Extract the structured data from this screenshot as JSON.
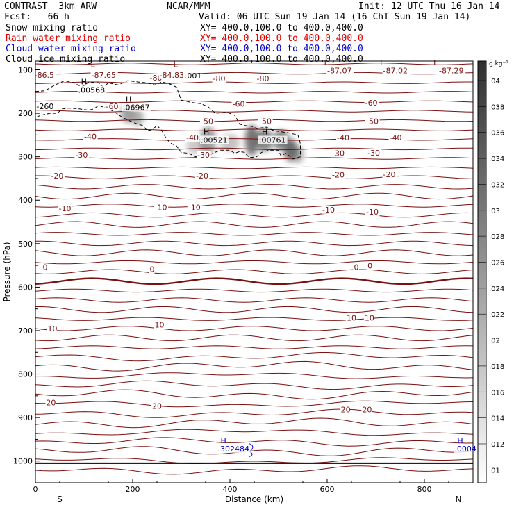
{
  "header": {
    "model": "CONTRAST  3km ARW",
    "org": "NCAR/MMM",
    "init": "Init: 12 UTC Thu 16 Jan 14",
    "fcst": "Fcst:   66 h",
    "valid": "Valid: 06 UTC Sun 19 Jan 14 (16 ChT Sun 19 Jan 14)"
  },
  "fields": [
    {
      "label": "Snow mixing ratio",
      "xy": "XY= 400.0,100.0 to 400.0,400.0",
      "color": "#000000"
    },
    {
      "label": "Rain water mixing ratio",
      "xy": "XY= 400.0,100.0 to 400.0,400.0",
      "color": "#e00000"
    },
    {
      "label": "Cloud water mixing ratio",
      "xy": "XY= 400.0,100.0 to 400.0,400.0",
      "color": "#0000cc"
    },
    {
      "label": "Cloud ice mixing ratio",
      "xy": "XY= 400.0,100.0 to 400.0,400.0",
      "color": "#000000"
    }
  ],
  "chart_data": {
    "type": "cross-section",
    "xlabel": "Distance (km)",
    "ylabel": "Pressure (hPa)",
    "xlim": [
      0,
      900
    ],
    "ylim": [
      1050,
      80
    ],
    "xticks": [
      "0",
      "200",
      "400",
      "600",
      "800"
    ],
    "xtick_values": [
      0,
      200,
      400,
      600,
      800
    ],
    "yticks": [
      "100",
      "200",
      "300",
      "400",
      "500",
      "600",
      "700",
      "800",
      "900",
      "1000"
    ],
    "ytick_values": [
      100,
      200,
      300,
      400,
      500,
      600,
      700,
      800,
      900,
      1000
    ],
    "direction_left": "S",
    "direction_right": "N",
    "surface_pressure": 1005,
    "colorbar": {
      "unit": "g kg⁻¹",
      "ticks": [
        ".01",
        ".012",
        ".014",
        ".016",
        ".018",
        ".02",
        ".022",
        ".024",
        ".026",
        ".028",
        ".03",
        ".032",
        ".034",
        ".036",
        ".038",
        ".04"
      ],
      "tick_values": [
        0.01,
        0.012,
        0.014,
        0.016,
        0.018,
        0.02,
        0.022,
        0.024,
        0.026,
        0.028,
        0.03,
        0.032,
        0.034,
        0.036,
        0.038,
        0.04
      ]
    },
    "temperature_labels": [
      {
        "text": "-86.5",
        "x": -2,
        "p": 118,
        "color": "#7a1010"
      },
      {
        "text": "-87.65",
        "x": 115,
        "p": 118,
        "color": "#7a1010"
      },
      {
        "text": "-80",
        "x": 235,
        "p": 125,
        "color": "#7a1010"
      },
      {
        "text": "-84.83",
        "x": 255,
        "p": 118,
        "color": "#7a1010"
      },
      {
        "text": "-80",
        "x": 365,
        "p": 126,
        "color": "#7a1010"
      },
      {
        "text": "-80",
        "x": 455,
        "p": 126,
        "color": "#7a1010"
      },
      {
        "text": "-87.07",
        "x": 600,
        "p": 108,
        "color": "#7a1010"
      },
      {
        "text": "-87.02",
        "x": 715,
        "p": 108,
        "color": "#7a1010"
      },
      {
        "text": "-87.29",
        "x": 830,
        "p": 108,
        "color": "#7a1010"
      },
      {
        "text": "-60",
        "x": 145,
        "p": 190,
        "color": "#7a1010"
      },
      {
        "text": "-60",
        "x": 405,
        "p": 185,
        "color": "#7a1010"
      },
      {
        "text": "-60",
        "x": 678,
        "p": 182,
        "color": "#7a1010"
      },
      {
        "text": "-50",
        "x": 340,
        "p": 225,
        "color": "#7a1010"
      },
      {
        "text": "-50",
        "x": 460,
        "p": 225,
        "color": "#7a1010"
      },
      {
        "text": "-50",
        "x": 680,
        "p": 225,
        "color": "#7a1010"
      },
      {
        "text": "-40",
        "x": 100,
        "p": 260,
        "color": "#7a1010"
      },
      {
        "text": "-40",
        "x": 310,
        "p": 262,
        "color": "#7a1010"
      },
      {
        "text": "-40",
        "x": 620,
        "p": 262,
        "color": "#7a1010"
      },
      {
        "text": "-40",
        "x": 728,
        "p": 262,
        "color": "#7a1010"
      },
      {
        "text": "-30",
        "x": 82,
        "p": 302,
        "color": "#7a1010"
      },
      {
        "text": "-30",
        "x": 333,
        "p": 302,
        "color": "#7a1010"
      },
      {
        "text": "-30",
        "x": 610,
        "p": 298,
        "color": "#7a1010"
      },
      {
        "text": "-30",
        "x": 683,
        "p": 297,
        "color": "#7a1010"
      },
      {
        "text": "-20",
        "x": 32,
        "p": 350,
        "color": "#7a1010"
      },
      {
        "text": "-20",
        "x": 330,
        "p": 350,
        "color": "#7a1010"
      },
      {
        "text": "-20",
        "x": 610,
        "p": 348,
        "color": "#7a1010"
      },
      {
        "text": "-20",
        "x": 715,
        "p": 347,
        "color": "#7a1010"
      },
      {
        "text": "-10",
        "x": 48,
        "p": 425,
        "color": "#7a1010"
      },
      {
        "text": "-10",
        "x": 245,
        "p": 423,
        "color": "#7a1010"
      },
      {
        "text": "-10",
        "x": 314,
        "p": 423,
        "color": "#7a1010"
      },
      {
        "text": "-10",
        "x": 590,
        "p": 428,
        "color": "#7a1010"
      },
      {
        "text": "-10",
        "x": 680,
        "p": 433,
        "color": "#7a1010"
      },
      {
        "text": "0",
        "x": 15,
        "p": 560,
        "color": "#7a1010"
      },
      {
        "text": "0",
        "x": 235,
        "p": 565,
        "color": "#7a1010"
      },
      {
        "text": "0",
        "x": 655,
        "p": 560,
        "color": "#7a1010"
      },
      {
        "text": "0",
        "x": 683,
        "p": 557,
        "color": "#7a1010"
      },
      {
        "text": "10",
        "x": 25,
        "p": 702,
        "color": "#7a1010"
      },
      {
        "text": "10",
        "x": 245,
        "p": 693,
        "color": "#7a1010"
      },
      {
        "text": "10",
        "x": 640,
        "p": 677,
        "color": "#7a1010"
      },
      {
        "text": "10",
        "x": 677,
        "p": 677,
        "color": "#7a1010"
      },
      {
        "text": "20",
        "x": 22,
        "p": 872,
        "color": "#7a1010"
      },
      {
        "text": "20",
        "x": 240,
        "p": 880,
        "color": "#7a1010"
      },
      {
        "text": "20",
        "x": 628,
        "p": 888,
        "color": "#7a1010"
      },
      {
        "text": "20",
        "x": 672,
        "p": 888,
        "color": "#7a1010"
      }
    ],
    "extrema_labels": [
      {
        "marker": "L",
        "value": "",
        "x": 108,
        "p": 100,
        "color": "#7a1010"
      },
      {
        "marker": "L",
        "value": "",
        "x": 278,
        "p": 100,
        "color": "#7a1010"
      },
      {
        "marker": "L",
        "value": "",
        "x": 588,
        "p": 96,
        "color": "#7a1010"
      },
      {
        "marker": "L",
        "value": "",
        "x": 703,
        "p": 96,
        "color": "#7a1010"
      },
      {
        "marker": "L",
        "value": "",
        "x": 813,
        "p": 96,
        "color": "#7a1010"
      },
      {
        "marker": "H",
        "value": ".00568",
        "x": 88,
        "p": 140,
        "color": "#000000"
      },
      {
        "marker": "H",
        "value": ".06967",
        "x": 180,
        "p": 180,
        "color": "#000000"
      },
      {
        "marker": "H",
        "value": ".00521",
        "x": 340,
        "p": 255,
        "color": "#000000"
      },
      {
        "marker": "H",
        "value": ".00761",
        "x": 460,
        "p": 255,
        "color": "#000000"
      },
      {
        "marker": "H",
        "value": ".302484",
        "x": 375,
        "p": 965,
        "color": "#0000cc"
      },
      {
        "marker": "H",
        "value": ".0004",
        "x": 862,
        "p": 965,
        "color": "#0000cc"
      }
    ],
    "misc_labels": [
      {
        "text": "-260",
        "x": 2,
        "p": 190,
        "color": "#000000"
      },
      {
        "text": ".001",
        "x": 307,
        "p": 120,
        "color": "#000000"
      }
    ]
  }
}
